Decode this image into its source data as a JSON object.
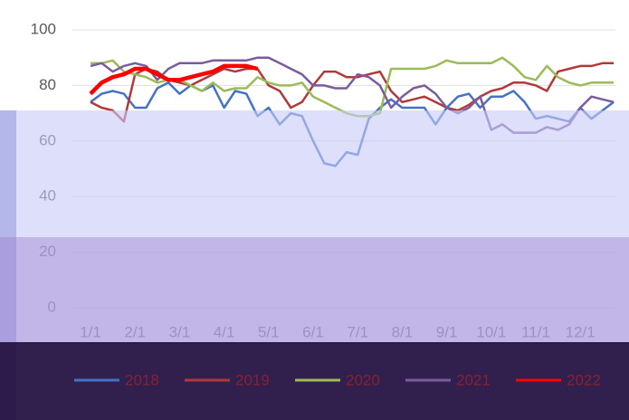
{
  "chart_data": {
    "type": "line",
    "categories": [
      "1/1",
      null,
      null,
      null,
      "2/1",
      null,
      null,
      null,
      "3/1",
      null,
      null,
      null,
      "4/1",
      null,
      null,
      null,
      "5/1",
      null,
      null,
      null,
      "6/1",
      null,
      null,
      null,
      "7/1",
      null,
      null,
      null,
      "8/1",
      null,
      null,
      null,
      "9/1",
      null,
      null,
      null,
      "10/1",
      null,
      null,
      null,
      "11/1",
      null,
      null,
      null,
      "12/1",
      null,
      null,
      null
    ],
    "ylim": [
      0,
      100
    ],
    "yticks": [
      0,
      20,
      40,
      60,
      80,
      100
    ],
    "grid": true,
    "legend": "bottom",
    "series": [
      {
        "name": "2018",
        "color": "#4472c4",
        "values": [
          74,
          77,
          78,
          77,
          72,
          72,
          79,
          81,
          77,
          80,
          78,
          80,
          72,
          78,
          77,
          69,
          72,
          66,
          70,
          69,
          60,
          52,
          51,
          56,
          55,
          68,
          72,
          75,
          72,
          72,
          72,
          66,
          72,
          76,
          77,
          72,
          76,
          76,
          78,
          74,
          68,
          69,
          68,
          67,
          72,
          68,
          71,
          74
        ]
      },
      {
        "name": "2019",
        "color": "#b03a3a",
        "values": [
          74,
          72,
          71,
          67,
          84,
          86,
          85,
          82,
          81,
          80,
          82,
          84,
          86,
          85,
          86,
          86,
          80,
          78,
          72,
          74,
          80,
          85,
          85,
          83,
          83,
          84,
          85,
          78,
          74,
          75,
          76,
          74,
          72,
          71,
          73,
          76,
          78,
          79,
          81,
          81,
          80,
          78,
          85,
          86,
          87,
          87,
          88,
          88
        ]
      },
      {
        "name": "2020",
        "color": "#9bbb59",
        "values": [
          88,
          88,
          89,
          85,
          84,
          83,
          81,
          82,
          82,
          80,
          78,
          81,
          78,
          79,
          79,
          83,
          81,
          80,
          80,
          81,
          76,
          74,
          72,
          70,
          69,
          69,
          70,
          86,
          86,
          86,
          86,
          87,
          89,
          88,
          88,
          88,
          88,
          90,
          87,
          83,
          82,
          87,
          83,
          81,
          80,
          81,
          81,
          81
        ]
      },
      {
        "name": "2021",
        "color": "#7a5c9e",
        "values": [
          87,
          88,
          85,
          87,
          88,
          87,
          82,
          86,
          88,
          88,
          88,
          89,
          89,
          89,
          89,
          90,
          90,
          88,
          86,
          84,
          80,
          80,
          79,
          79,
          84,
          83,
          80,
          72,
          76,
          79,
          80,
          77,
          72,
          70,
          72,
          76,
          64,
          66,
          63,
          63,
          63,
          65,
          64,
          66,
          72,
          76,
          75,
          74
        ]
      },
      {
        "name": "2022",
        "color": "#ff0000",
        "values": [
          77,
          81,
          83,
          84,
          86,
          86,
          84,
          82,
          82,
          83,
          84,
          85,
          87,
          87,
          87,
          86,
          null,
          null,
          null,
          null,
          null,
          null,
          null,
          null,
          null,
          null,
          null,
          null,
          null,
          null,
          null,
          null,
          null,
          null,
          null,
          null,
          null,
          null,
          null,
          null,
          null,
          null,
          null,
          null,
          null,
          null,
          null,
          null
        ]
      }
    ]
  }
}
